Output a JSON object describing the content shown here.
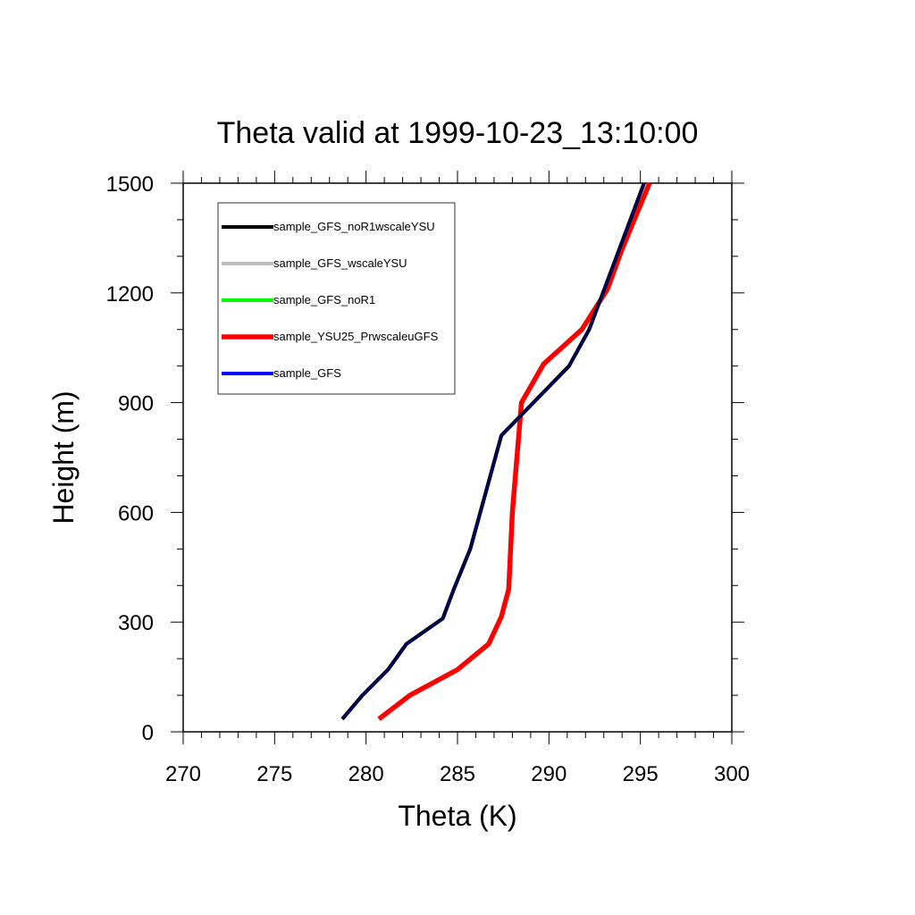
{
  "chart_data": {
    "type": "line",
    "title": "Theta valid at 1999-10-23_13:10:00",
    "xlabel": "Theta (K)",
    "ylabel": "Height (m)",
    "xlim": [
      270,
      300
    ],
    "ylim": [
      0,
      1500
    ],
    "xticks": [
      270,
      275,
      280,
      285,
      290,
      295,
      300
    ],
    "xtick_labels": [
      "270",
      "275",
      "280",
      "285",
      "290",
      "295",
      "300"
    ],
    "yticks": [
      0,
      300,
      600,
      900,
      1200,
      1500
    ],
    "ytick_labels": [
      "0",
      "300",
      "600",
      "900",
      "1200",
      "1500"
    ],
    "grid": false,
    "legend_position": "top-left",
    "series": [
      {
        "name": "sample_GFS_noR1wscaleYSU",
        "color": "#000000",
        "line_weight": "thick",
        "x": [
          278.7,
          279.8,
          281.2,
          282.2,
          284.2,
          284.8,
          285.7,
          287.4,
          291.1,
          292.2,
          295.2
        ],
        "y": [
          35,
          100,
          170,
          240,
          310,
          390,
          500,
          810,
          1000,
          1100,
          1500
        ]
      },
      {
        "name": "sample_GFS_wscaleYSU",
        "color": "#bebebe",
        "line_weight": "thick",
        "x": [
          278.7,
          279.8,
          281.2,
          282.2,
          284.2,
          284.8,
          285.7,
          287.4,
          291.1,
          292.2,
          295.2
        ],
        "y": [
          35,
          100,
          170,
          240,
          310,
          390,
          500,
          810,
          1000,
          1100,
          1500
        ]
      },
      {
        "name": "sample_GFS_noR1",
        "color": "#00ff00",
        "line_weight": "thick",
        "x": [
          278.7,
          279.8,
          281.2,
          282.2,
          284.2,
          284.8,
          285.7,
          287.4,
          291.1,
          292.2,
          295.2
        ],
        "y": [
          35,
          100,
          170,
          240,
          310,
          390,
          500,
          810,
          1000,
          1100,
          1500
        ]
      },
      {
        "name": "sample_YSU25_PrwscaleuGFS",
        "color": "#ff0000",
        "line_weight": "thicker",
        "x": [
          280.7,
          282.4,
          285.0,
          286.7,
          287.4,
          287.8,
          288.0,
          288.5,
          289.7,
          291.8,
          293.2,
          294.0,
          295.5
        ],
        "y": [
          35,
          100,
          170,
          240,
          315,
          390,
          600,
          900,
          1005,
          1100,
          1210,
          1320,
          1500
        ]
      },
      {
        "name": "sample_GFS",
        "color": "#0000ff",
        "line_weight": "thick",
        "x": [
          278.7,
          279.8,
          281.2,
          282.2,
          284.2,
          284.8,
          285.7,
          287.4,
          291.1,
          292.2,
          295.2
        ],
        "y": [
          35,
          100,
          170,
          240,
          310,
          390,
          500,
          810,
          1000,
          1100,
          1500
        ]
      }
    ]
  }
}
